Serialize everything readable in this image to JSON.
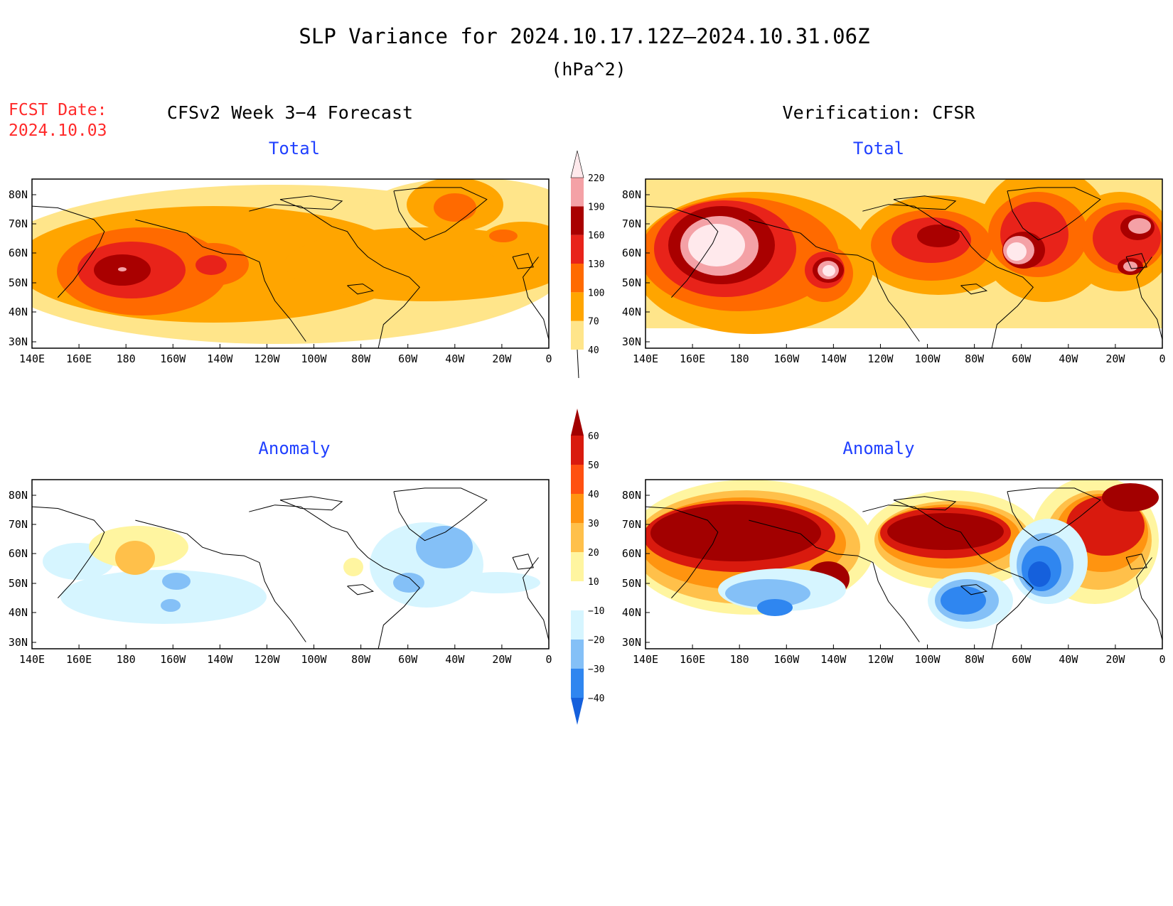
{
  "title": "SLP Variance for 2024.10.17.12Z—2024.10.31.06Z",
  "units": "(hPa^2)",
  "fcst_date_label": "FCST Date:",
  "fcst_date": "2024.10.03",
  "left_header": "CFSv2 Week 3−4 Forecast",
  "right_header": "Verification: CFSR",
  "colors": {
    "label_blue": "#2040ff",
    "fcst_red": "#ff2a2a",
    "land_line": "#000000"
  },
  "x_ticks": [
    "140E",
    "160E",
    "180",
    "160W",
    "140W",
    "120W",
    "100W",
    "80W",
    "60W",
    "40W",
    "20W",
    "0"
  ],
  "y_ticks": [
    "80N",
    "70N",
    "60N",
    "50N",
    "40N",
    "30N"
  ],
  "chart_data": [
    {
      "type": "heatmap",
      "title": "Total",
      "dataset": "CFSv2 Week 3−4 Forecast",
      "xlim": [
        140,
        360
      ],
      "ylim": [
        24,
        85
      ],
      "regions": [
        {
          "lon": 160,
          "lat": 53,
          "level": 40
        },
        {
          "lon": 225,
          "lat": 52,
          "level": 70
        },
        {
          "lon": 182,
          "lat": 52,
          "level": 100
        },
        {
          "lon": 182,
          "lat": 52,
          "level": 130
        },
        {
          "lon": 180,
          "lat": 52,
          "level": 160
        },
        {
          "lon": 216,
          "lat": 55,
          "level": 130
        },
        {
          "lon": 318,
          "lat": 74,
          "level": 70
        },
        {
          "lon": 320,
          "lat": 74,
          "level": 100
        },
        {
          "lon": 320,
          "lat": 74,
          "level": 130
        },
        {
          "lon": 295,
          "lat": 55,
          "level": 70
        }
      ]
    },
    {
      "type": "heatmap",
      "title": "Total",
      "dataset": "Verification: CFSR",
      "xlim": [
        140,
        360
      ],
      "ylim": [
        24,
        85
      ],
      "regions": [
        {
          "lon": 180,
          "lat": 55,
          "level": 130
        },
        {
          "lon": 166,
          "lat": 60,
          "level": 160
        },
        {
          "lon": 166,
          "lat": 60,
          "level": 190
        },
        {
          "lon": 218,
          "lat": 51,
          "level": 160
        },
        {
          "lon": 218,
          "lat": 51,
          "level": 190
        },
        {
          "lon": 268,
          "lat": 63,
          "level": 130
        },
        {
          "lon": 300,
          "lat": 60,
          "level": 160
        },
        {
          "lon": 300,
          "lat": 58,
          "level": 190
        },
        {
          "lon": 348,
          "lat": 62,
          "level": 160
        },
        {
          "lon": 350,
          "lat": 64,
          "level": 190
        }
      ]
    },
    {
      "type": "heatmap",
      "title": "Anomaly",
      "dataset": "CFSv2 Week 3−4 Forecast",
      "xlim": [
        140,
        360
      ],
      "ylim": [
        24,
        85
      ],
      "regions": [
        {
          "lon": 182,
          "lat": 57,
          "level": 10
        },
        {
          "lon": 182,
          "lat": 58,
          "level": 20
        },
        {
          "lon": 200,
          "lat": 45,
          "level": -10
        },
        {
          "lon": 198,
          "lat": 50,
          "level": -20
        },
        {
          "lon": 312,
          "lat": 63,
          "level": -10
        },
        {
          "lon": 315,
          "lat": 62,
          "level": -20
        },
        {
          "lon": 278,
          "lat": 53,
          "level": 10
        }
      ]
    },
    {
      "type": "heatmap",
      "title": "Anomaly",
      "dataset": "Verification: CFSR",
      "xlim": [
        140,
        360
      ],
      "ylim": [
        24,
        85
      ],
      "regions": [
        {
          "lon": 190,
          "lat": 65,
          "level": 60
        },
        {
          "lon": 218,
          "lat": 51,
          "level": 60
        },
        {
          "lon": 282,
          "lat": 63,
          "level": 60
        },
        {
          "lon": 352,
          "lat": 70,
          "level": 60
        },
        {
          "lon": 208,
          "lat": 55,
          "level": -30
        },
        {
          "lon": 292,
          "lat": 45,
          "level": -30
        },
        {
          "lon": 318,
          "lat": 52,
          "level": -40
        },
        {
          "lon": 340,
          "lat": 72,
          "level": -30
        },
        {
          "lon": 200,
          "lat": 40,
          "level": -30
        }
      ]
    }
  ],
  "colorbars": [
    {
      "ticks": [
        "220",
        "190",
        "160",
        "130",
        "100",
        "70",
        "40"
      ],
      "levels": [
        40,
        70,
        100,
        130,
        160,
        190,
        220
      ],
      "colors": [
        "#ffe58a",
        "#ffa500",
        "#ff6a00",
        "#e8231a",
        "#a90000",
        "#f4a1a6",
        "#ffe9ec"
      ]
    },
    {
      "ticks": [
        "60",
        "50",
        "40",
        "30",
        "20",
        "10",
        "−10",
        "−20",
        "−30",
        "−40"
      ],
      "levels": [
        -40,
        -30,
        -20,
        -10,
        10,
        20,
        30,
        40,
        50,
        60
      ],
      "colors": [
        "#1560dc",
        "#2f86f0",
        "#84c0f7",
        "#d6f5ff",
        "#ffffff",
        "#fff5a0",
        "#ffc04a",
        "#ff9410",
        "#ff5010",
        "#d91a0e",
        "#a20000"
      ]
    }
  ]
}
